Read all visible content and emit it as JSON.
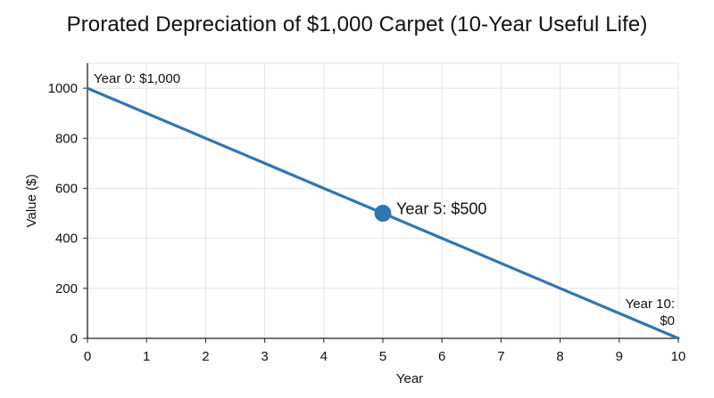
{
  "chart_data": {
    "type": "line",
    "title": "Prorated Depreciation of $1,000 Carpet (10-Year Useful Life)",
    "xlabel": "Year",
    "ylabel": "Value ($)",
    "xlim": [
      0,
      10
    ],
    "ylim": [
      0,
      1100
    ],
    "xticks": [
      0,
      1,
      2,
      3,
      4,
      5,
      6,
      7,
      8,
      9,
      10
    ],
    "yticks": [
      0,
      200,
      400,
      600,
      800,
      1000
    ],
    "grid": true,
    "legend": "none",
    "series": [
      {
        "x": [
          0,
          1,
          2,
          3,
          4,
          5,
          6,
          7,
          8,
          9,
          10
        ],
        "values": [
          1000,
          900,
          800,
          700,
          600,
          500,
          400,
          300,
          200,
          100,
          0
        ],
        "color": "#2e75b6"
      }
    ],
    "highlight_point": {
      "x": 5,
      "y": 500,
      "color": "#2e75b6"
    },
    "annotations": [
      {
        "x": 0,
        "y": 1000,
        "lines": [
          "Year 0: $1,000"
        ],
        "anchor": "start",
        "position": "above-right"
      },
      {
        "x": 5,
        "y": 500,
        "lines": [
          "Year 5: $500"
        ],
        "anchor": "start",
        "position": "right",
        "emphasis": true
      },
      {
        "x": 10,
        "y": 0,
        "lines": [
          "Year 10:",
          "$0"
        ],
        "anchor": "end",
        "position": "above-left"
      }
    ]
  }
}
